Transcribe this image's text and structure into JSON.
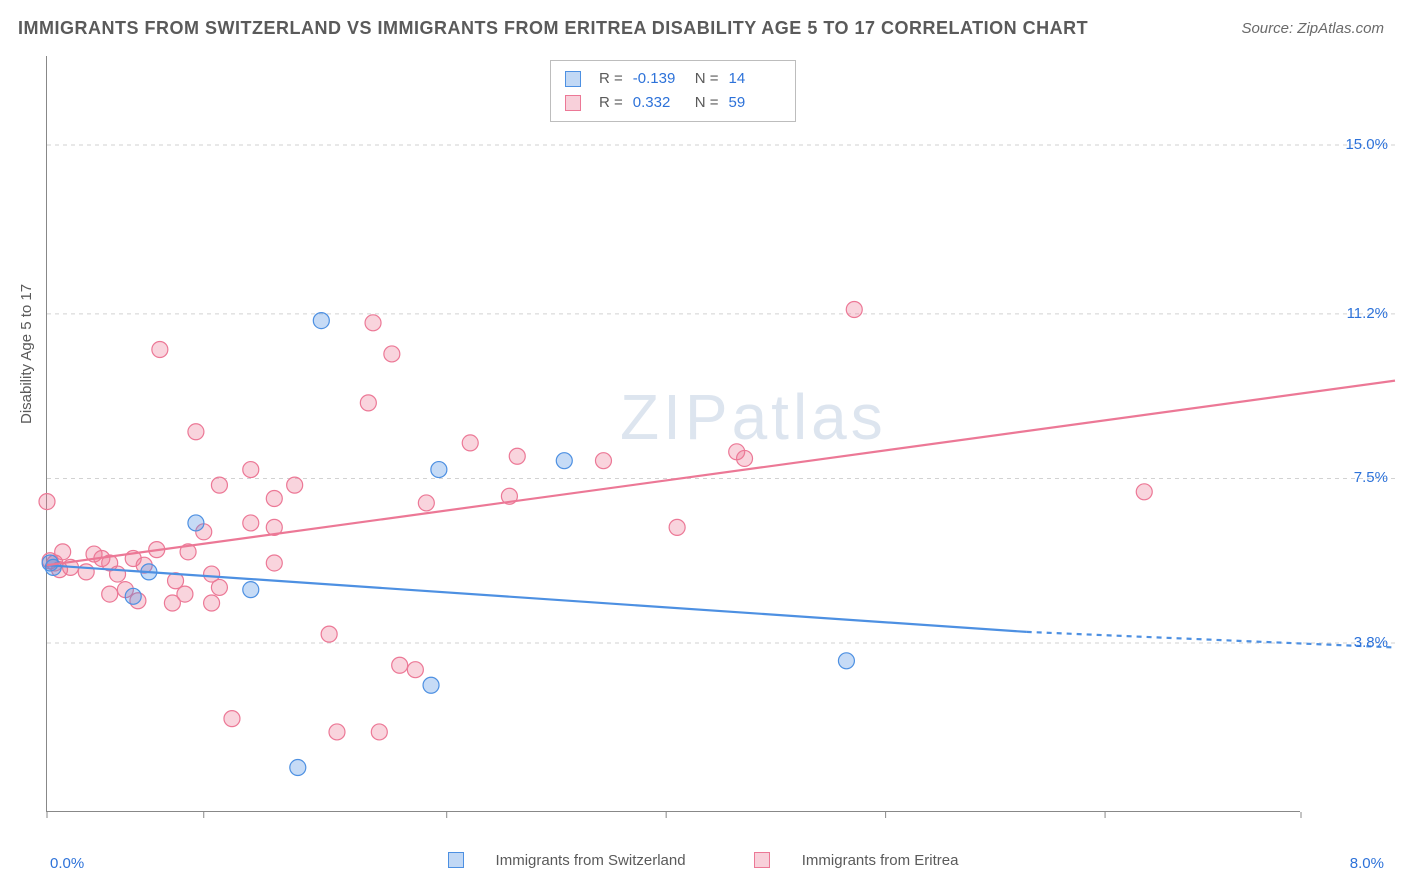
{
  "title": "IMMIGRANTS FROM SWITZERLAND VS IMMIGRANTS FROM ERITREA DISABILITY AGE 5 TO 17 CORRELATION CHART",
  "source": "Source: ZipAtlas.com",
  "watermark": "ZIPatlas",
  "chart": {
    "type": "scatter",
    "ylabel": "Disability Age 5 to 17",
    "xlim": [
      0.0,
      8.0
    ],
    "ylim": [
      0.0,
      17.0
    ],
    "xtick_left": "0.0%",
    "xtick_right": "8.0%",
    "xtick_positions": [
      0.0,
      1.0,
      2.55,
      3.95,
      5.35,
      6.75,
      8.0
    ],
    "yticks": [
      {
        "v": 3.8,
        "label": "3.8%"
      },
      {
        "v": 7.5,
        "label": "7.5%"
      },
      {
        "v": 11.2,
        "label": "11.2%"
      },
      {
        "v": 15.0,
        "label": "15.0%"
      }
    ],
    "background_color": "#ffffff",
    "grid_color": "#d2d2d2",
    "axis_color": "#888888",
    "tick_text_color": "#2d72d9",
    "label_text_color": "#5a5a5a",
    "title_fontsize": 18,
    "label_fontsize": 15,
    "marker_radius": 8,
    "marker_fill_opacity": 0.32,
    "series": {
      "switzerland": {
        "label": "Immigrants from Switzerland",
        "color": "#4d90e2",
        "R": "-0.139",
        "N": "14",
        "trend": {
          "x1": 0.0,
          "y1": 5.55,
          "x2": 6.25,
          "y2": 4.05,
          "dash_x2": 8.0,
          "dash_y2": 3.7
        },
        "line_width": 2.2,
        "points": [
          [
            0.02,
            5.6
          ],
          [
            0.04,
            5.5
          ],
          [
            0.55,
            4.85
          ],
          [
            0.65,
            5.4
          ],
          [
            0.95,
            6.5
          ],
          [
            1.3,
            5.0
          ],
          [
            1.6,
            1.0
          ],
          [
            1.75,
            11.05
          ],
          [
            2.5,
            7.7
          ],
          [
            2.45,
            2.85
          ],
          [
            3.3,
            7.9
          ],
          [
            5.1,
            3.4
          ]
        ]
      },
      "eritrea": {
        "label": "Immigrants from Eritrea",
        "color": "#ec7896",
        "R": "0.332",
        "N": "59",
        "trend": {
          "x1": 0.0,
          "y1": 5.55,
          "x2": 8.0,
          "y2": 9.7
        },
        "line_width": 2.2,
        "points": [
          [
            0.0,
            6.98
          ],
          [
            0.02,
            5.65
          ],
          [
            0.05,
            5.6
          ],
          [
            0.08,
            5.45
          ],
          [
            0.1,
            5.85
          ],
          [
            0.15,
            5.5
          ],
          [
            0.25,
            5.4
          ],
          [
            0.3,
            5.8
          ],
          [
            0.35,
            5.7
          ],
          [
            0.4,
            5.6
          ],
          [
            0.4,
            4.9
          ],
          [
            0.45,
            5.35
          ],
          [
            0.5,
            5.0
          ],
          [
            0.55,
            5.7
          ],
          [
            0.58,
            4.75
          ],
          [
            0.62,
            5.55
          ],
          [
            0.7,
            5.9
          ],
          [
            0.72,
            10.4
          ],
          [
            0.8,
            4.7
          ],
          [
            0.82,
            5.2
          ],
          [
            0.88,
            4.9
          ],
          [
            0.9,
            5.85
          ],
          [
            0.95,
            8.55
          ],
          [
            1.0,
            6.3
          ],
          [
            1.05,
            5.35
          ],
          [
            1.05,
            4.7
          ],
          [
            1.1,
            7.35
          ],
          [
            1.1,
            5.05
          ],
          [
            1.18,
            2.1
          ],
          [
            1.3,
            7.7
          ],
          [
            1.3,
            6.5
          ],
          [
            1.45,
            7.05
          ],
          [
            1.45,
            6.4
          ],
          [
            1.45,
            5.6
          ],
          [
            1.58,
            7.35
          ],
          [
            1.8,
            4.0
          ],
          [
            1.85,
            1.8
          ],
          [
            2.05,
            9.2
          ],
          [
            2.08,
            11.0
          ],
          [
            2.12,
            1.8
          ],
          [
            2.2,
            10.3
          ],
          [
            2.25,
            3.3
          ],
          [
            2.35,
            3.2
          ],
          [
            2.42,
            6.95
          ],
          [
            2.7,
            8.3
          ],
          [
            2.95,
            7.1
          ],
          [
            3.0,
            8.0
          ],
          [
            3.55,
            7.9
          ],
          [
            4.02,
            6.4
          ],
          [
            4.4,
            8.1
          ],
          [
            4.45,
            7.95
          ],
          [
            5.15,
            11.3
          ],
          [
            7.0,
            7.2
          ]
        ]
      }
    }
  },
  "top_legend": {
    "rows": [
      {
        "swatch": "sw",
        "R_label": "R =",
        "R": "-0.139",
        "N_label": "N =",
        "N": "14"
      },
      {
        "swatch": "er",
        "R_label": "R =",
        "R": "0.332",
        "N_label": "N =",
        "N": "59"
      }
    ]
  }
}
